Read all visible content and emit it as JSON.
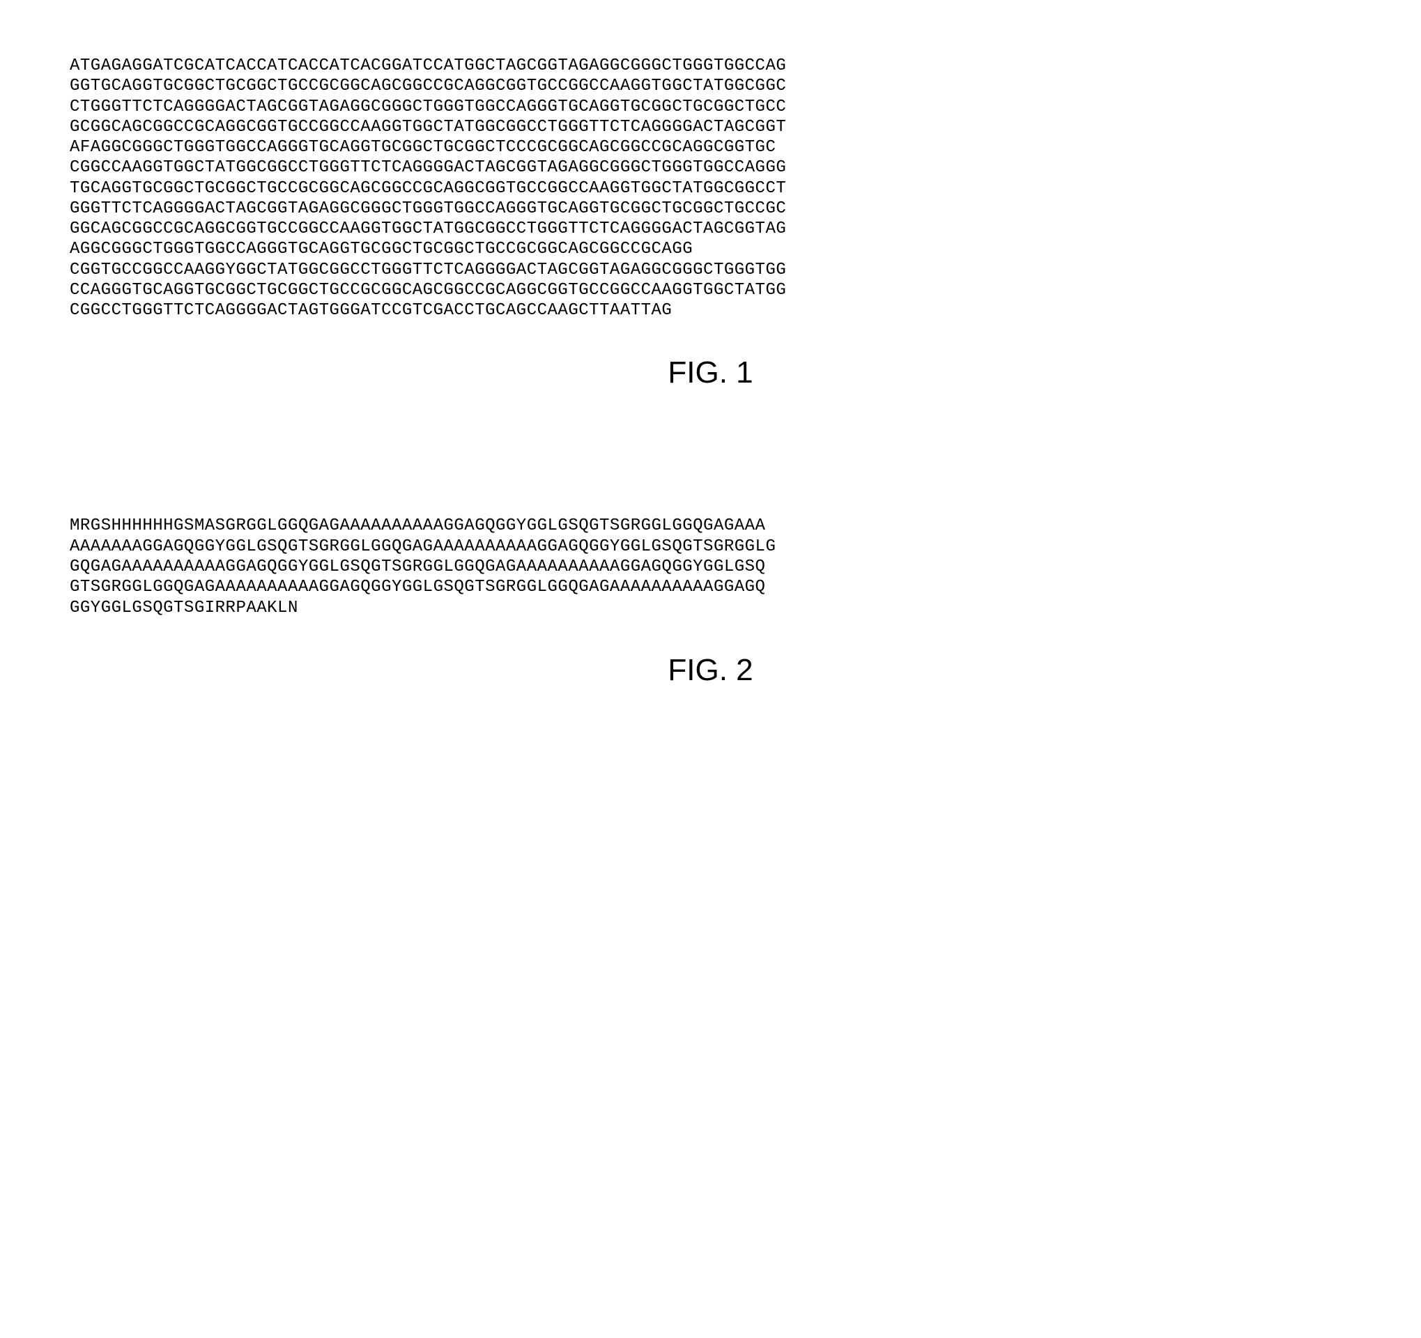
{
  "figure1": {
    "sequence": "ATGAGAGGATCGCATCACCATCACCATCACGGATCCATGGCTAGCGGTAGAGGCGGGCTGGGTGGCCAG\nGGTGCAGGTGCGGCTGCGGCTGCCGCGGCAGCGGCCGCAGGCGGTGCCGGCCAAGGTGGCTATGGCGGC\nCTGGGTTCTCAGGGGACTAGCGGTAGAGGCGGGCTGGGTGGCCAGGGTGCAGGTGCGGCTGCGGCTGCC\nGCGGCAGCGGCCGCAGGCGGTGCCGGCCAAGGTGGCTATGGCGGCCTGGGTTCTCAGGGGACTAGCGGT\nAFAGGCGGGCTGGGTGGCCAGGGTGCAGGTGCGGCTGCGGCTCCCGCGGCAGCGGCCGCAGGCGGTGC\nCGGCCAAGGTGGCTATGGCGGCCTGGGTTCTCAGGGGACTAGCGGTAGAGGCGGGCTGGGTGGCCAGGG\nTGCAGGTGCGGCTGCGGCTGCCGCGGCAGCGGCCGCAGGCGGTGCCGGCCAAGGTGGCTATGGCGGCCT\nGGGTTCTCAGGGGACTAGCGGTAGAGGCGGGCTGGGTGGCCAGGGTGCAGGTGCGGCTGCGGCTGCCGC\nGGCAGCGGCCGCAGGCGGTGCCGGCCAAGGTGGCTATGGCGGCCTGGGTTCTCAGGGGACTAGCGGTAG\nAGGCGGGCTGGGTGGCCAGGGTGCAGGTGCGGCTGCGGCTGCCGCGGCAGCGGCCGCAGG\nCGGTGCCGGCCAAGGYGGCTATGGCGGCCTGGGTTCTCAGGGGACTAGCGGTAGAGGCGGGCTGGGTGG\nCCAGGGTGCAGGTGCGGCTGCGGCTGCCGCGGCAGCGGCCGCAGGCGGTGCCGGCCAAGGTGGCTATGG\nCGGCCTGGGTTCTCAGGGGACTAGTGGGATCCGTCGACCTGCAGCCAAGCTTAATTAG",
    "label": "FIG. 1"
  },
  "figure2": {
    "sequence": "MRGSHHHHHHGSMASGRGGLGGQGAGAAAAAAAAAAGGAGQGGYGGLGSQGTSGRGGLGGQGAGAAA\nAAAAAAAGGAGQGGYGGLGSQGTSGRGGLGGQGAGAAAAAAAAAAGGAGQGGYGGLGSQGTSGRGGLG\nGQGAGAAAAAAAAAAGGAGQGGYGGLGSQGTSGRGGLGGQGAGAAAAAAAAAAGGAGQGGYGGLGSQ\nGTSGRGGLGGQGAGAAAAAAAAAAGGAGQGGYGGLGSQGTSGRGGLGGQGAGAAAAAAAAAAGGAGQ\nGGYGGLGSQGTSGIRRPAAKLN",
    "label": "FIG. 2"
  }
}
